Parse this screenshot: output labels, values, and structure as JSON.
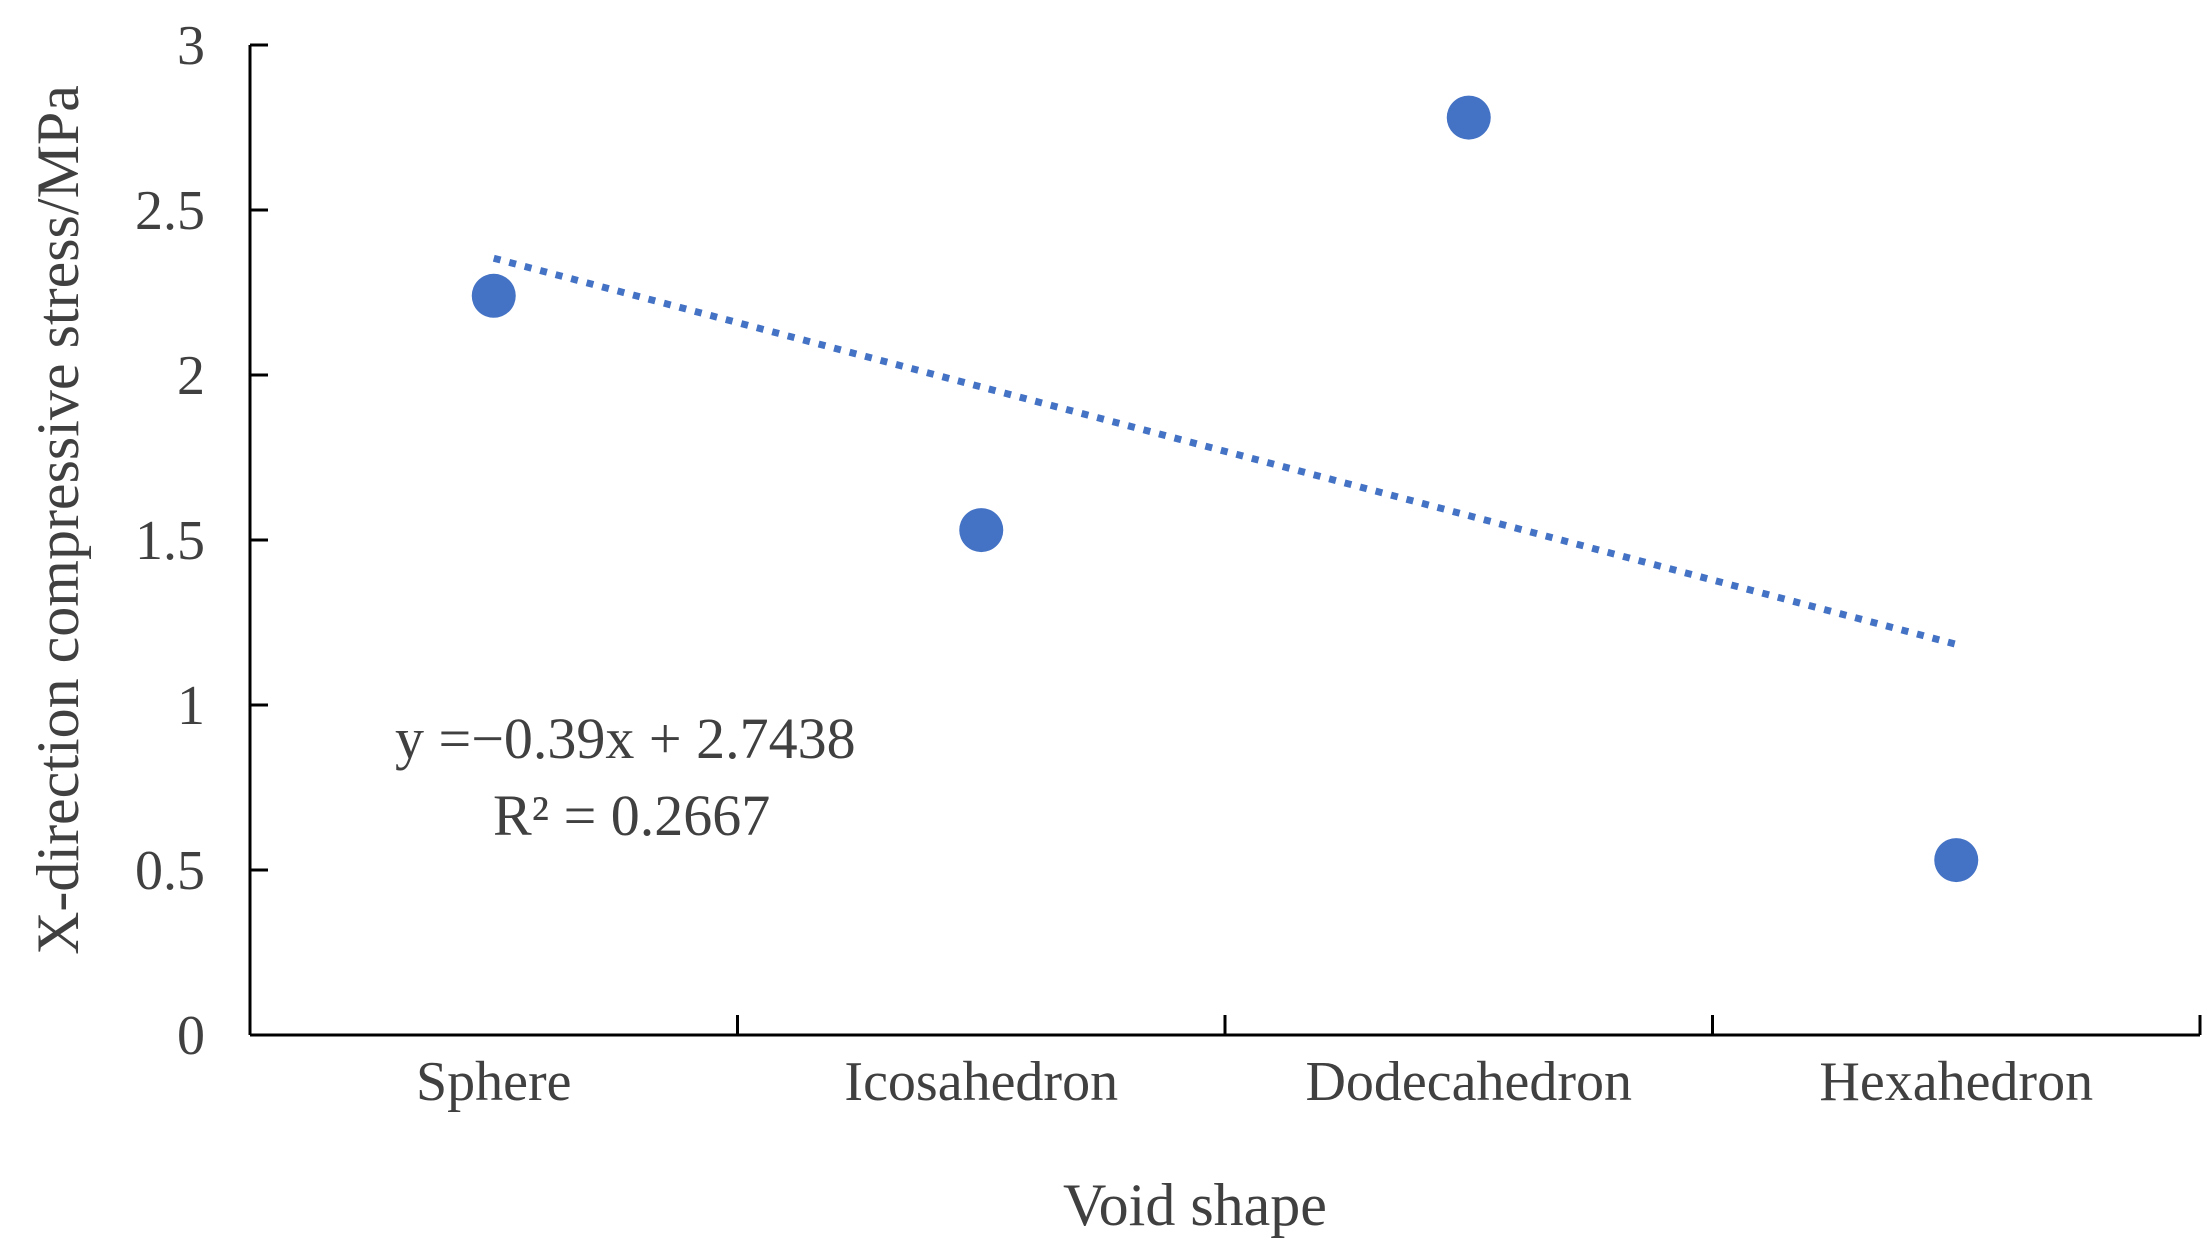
{
  "chart_data": {
    "type": "scatter",
    "title": "",
    "xlabel": "Void shape",
    "ylabel": "X-direction compressive stress/MPa",
    "categories": [
      "Sphere",
      "Icosahedron",
      "Dodecahedron",
      "Hexahedron"
    ],
    "x": [
      1,
      2,
      3,
      4
    ],
    "values": [
      2.24,
      1.53,
      2.78,
      0.53
    ],
    "ylim": [
      0,
      3
    ],
    "yticks": [
      "0",
      "0.5",
      "1",
      "1.5",
      "2",
      "2.5",
      "3"
    ],
    "grid": false,
    "marker_color": "#4472C4",
    "trendline": {
      "type": "linear",
      "slope": -0.39,
      "intercept": 2.7438,
      "style": "dotted",
      "color": "#4472C4",
      "equation_label": "y =−0.39x + 2.7438",
      "r2_label": "R² = 0.2667"
    }
  }
}
